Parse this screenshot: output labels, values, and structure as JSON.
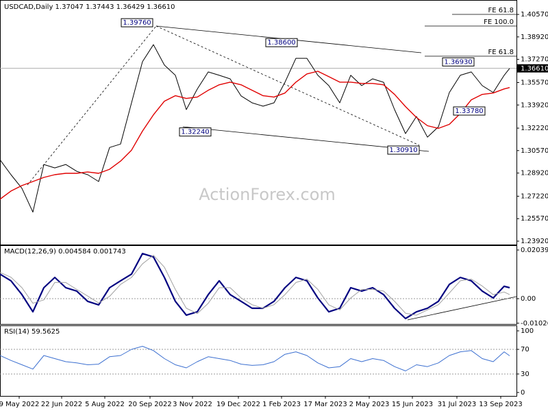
{
  "chart_data": [
    {
      "type": "line",
      "title": "USDCAD,Daily  1.37047 1.37443 1.36429 1.36610",
      "watermark": "ActionForex.com",
      "x": [
        0,
        8,
        16,
        24,
        32,
        40,
        48,
        56,
        64,
        72,
        80,
        88,
        96,
        104,
        112,
        120,
        128,
        136,
        144,
        152,
        160,
        168,
        176,
        184,
        192,
        200,
        208,
        216,
        224,
        232,
        240,
        248,
        256,
        264,
        272,
        280,
        288,
        296,
        304,
        312,
        320,
        328,
        336,
        344,
        352,
        360,
        368,
        372
      ],
      "series": [
        {
          "name": "USDCAD",
          "color": "#000000",
          "values": [
            1.299,
            1.288,
            1.278,
            1.2605,
            1.2955,
            1.293,
            1.2955,
            1.2905,
            1.288,
            1.283,
            1.308,
            1.3105,
            1.3408,
            1.371,
            1.3835,
            1.3685,
            1.361,
            1.3358,
            1.3509,
            1.3635,
            1.361,
            1.3584,
            1.3458,
            1.3408,
            1.3383,
            1.3408,
            1.3559,
            1.3735,
            1.3735,
            1.361,
            1.3534,
            1.3408,
            1.361,
            1.3534,
            1.3584,
            1.3559,
            1.3358,
            1.3182,
            1.3308,
            1.3156,
            1.3232,
            1.3484,
            1.361,
            1.3635,
            1.3534,
            1.3484,
            1.361,
            1.3661
          ]
        },
        {
          "name": "MA",
          "color": "#e00000",
          "values": [
            1.27,
            1.276,
            1.28,
            1.283,
            1.286,
            1.288,
            1.289,
            1.289,
            1.29,
            1.289,
            1.292,
            1.298,
            1.306,
            1.32,
            1.332,
            1.342,
            1.346,
            1.344,
            1.345,
            1.35,
            1.354,
            1.356,
            1.354,
            1.35,
            1.346,
            1.345,
            1.348,
            1.356,
            1.362,
            1.364,
            1.36,
            1.356,
            1.356,
            1.355,
            1.355,
            1.354,
            1.347,
            1.338,
            1.33,
            1.324,
            1.322,
            1.325,
            1.333,
            1.343,
            1.347,
            1.348,
            1.351,
            1.352
          ]
        }
      ],
      "xlim": [
        0,
        377
      ],
      "ylim": [
        1.2367,
        1.4163
      ],
      "yticks": [
        {
          "value": 1.4057,
          "label": "1.40570"
        },
        {
          "value": 1.3892,
          "label": "1.38920"
        },
        {
          "value": 1.3727,
          "label": "1.37270"
        },
        {
          "value": 1.3557,
          "label": "1.35570"
        },
        {
          "value": 1.3392,
          "label": "1.33920"
        },
        {
          "value": 1.3222,
          "label": "1.32220"
        },
        {
          "value": 1.3057,
          "label": "1.30570"
        },
        {
          "value": 1.2892,
          "label": "1.28920"
        },
        {
          "value": 1.2722,
          "label": "1.27220"
        },
        {
          "value": 1.2557,
          "label": "1.25570"
        },
        {
          "value": 1.2392,
          "label": "1.23920"
        }
      ],
      "current_price": {
        "value": 1.3661,
        "label": "1.36610"
      },
      "annotations": [
        {
          "x": 114,
          "value": 1.3976,
          "label": "1.39760"
        },
        {
          "x": 217,
          "value": 1.386,
          "label": "1.38600"
        },
        {
          "x": 346,
          "value": 1.3693,
          "label": "1.36930"
        },
        {
          "x": 133,
          "value": 1.3224,
          "label": "1.32240"
        },
        {
          "x": 354,
          "value": 1.3378,
          "label": "1.33780"
        },
        {
          "x": 306,
          "value": 1.3091,
          "label": "1.30910"
        }
      ],
      "fe_labels": [
        "FE 61.8",
        "FE 100.0",
        "FE 61.8"
      ]
    },
    {
      "type": "line",
      "title": "MACD(12,26,9) 0.004584 0.001743",
      "x": [
        0,
        8,
        16,
        24,
        32,
        40,
        48,
        56,
        64,
        72,
        80,
        88,
        96,
        104,
        112,
        120,
        128,
        136,
        144,
        152,
        160,
        168,
        176,
        184,
        192,
        200,
        208,
        216,
        224,
        232,
        240,
        248,
        256,
        264,
        272,
        280,
        288,
        296,
        304,
        312,
        320,
        328,
        336,
        344,
        352,
        360,
        368,
        372
      ],
      "series": [
        {
          "name": "MACD",
          "color": "#000080",
          "values": [
            0.0103,
            0.0075,
            0.0017,
            -0.0055,
            0.0046,
            0.0089,
            0.0046,
            0.0032,
            -0.0011,
            -0.0026,
            0.0046,
            0.0075,
            0.0103,
            0.0189,
            0.0175,
            0.0089,
            -0.0011,
            -0.0069,
            -0.0055,
            0.0017,
            0.0075,
            0.0017,
            -0.0011,
            -0.004,
            -0.004,
            -0.0011,
            0.0046,
            0.0089,
            0.0075,
            0.0003,
            -0.0055,
            -0.004,
            0.0046,
            0.0032,
            0.0046,
            0.0017,
            -0.004,
            -0.0083,
            -0.0055,
            -0.004,
            -0.0011,
            0.006,
            0.0089,
            0.0075,
            0.0032,
            0.0003,
            0.0052,
            0.0046
          ]
        },
        {
          "name": "Signal",
          "color": "#a0a0a0",
          "values": [
            0.011,
            0.009,
            0.0046,
            -0.0019,
            -0.0005,
            0.0068,
            0.0068,
            0.0039,
            0.0011,
            -0.0018,
            0.001,
            0.006,
            0.0089,
            0.0146,
            0.0182,
            0.0132,
            0.0039,
            -0.004,
            -0.0062,
            -0.0019,
            0.0046,
            0.0046,
            0.0003,
            -0.0025,
            -0.004,
            -0.0025,
            0.0017,
            0.0068,
            0.0082,
            0.0039,
            -0.0026,
            -0.0047,
            0.0003,
            0.0039,
            0.0039,
            0.0032,
            -0.0011,
            -0.0061,
            -0.0069,
            -0.0047,
            -0.0025,
            0.0024,
            0.0075,
            0.0082,
            0.0053,
            0.0017,
            0.0028,
            0.0017
          ]
        }
      ],
      "xlim": [
        0,
        377
      ],
      "ylim": [
        -0.0106,
        0.0224
      ],
      "yticks": [
        0.020399,
        {
          "value": 0,
          "label": "0.00"
        },
        -0.01026
      ]
    },
    {
      "type": "line",
      "title": "RSI(14) 59.5625",
      "x": [
        0,
        8,
        16,
        24,
        32,
        40,
        48,
        56,
        64,
        72,
        80,
        88,
        96,
        104,
        112,
        120,
        128,
        136,
        144,
        152,
        160,
        168,
        176,
        184,
        192,
        200,
        208,
        216,
        224,
        232,
        240,
        248,
        256,
        264,
        272,
        280,
        288,
        296,
        304,
        312,
        320,
        328,
        336,
        344,
        352,
        360,
        368,
        372
      ],
      "series": [
        {
          "name": "RSI",
          "color": "#3b6fd0",
          "values": [
            60,
            52,
            45,
            38,
            60,
            55,
            50,
            48,
            45,
            46,
            58,
            60,
            70,
            75,
            68,
            55,
            45,
            40,
            50,
            58,
            55,
            52,
            46,
            44,
            45,
            50,
            62,
            66,
            60,
            48,
            40,
            42,
            55,
            50,
            55,
            52,
            42,
            35,
            45,
            42,
            48,
            60,
            66,
            68,
            55,
            50,
            66,
            59.5625
          ]
        }
      ],
      "xlim": [
        0,
        377
      ],
      "ylim": [
        -5.6,
        108.9
      ],
      "yticks": [
        100,
        70,
        30,
        0
      ],
      "levels": [
        70,
        30
      ],
      "xticks": [
        {
          "value": 14,
          "label": "9 May 2022"
        },
        {
          "value": 45,
          "label": "22 Jun 2022"
        },
        {
          "value": 76.5,
          "label": "5 Aug 2022"
        },
        {
          "value": 109.5,
          "label": "20 Sep 2022"
        },
        {
          "value": 140.5,
          "label": "3 Nov 2022"
        },
        {
          "value": 174,
          "label": "19 Dec 2022"
        },
        {
          "value": 205.5,
          "label": "1 Feb 2023"
        },
        {
          "value": 237.5,
          "label": "17 Mar 2023"
        },
        {
          "value": 269.5,
          "label": "2 May 2023"
        },
        {
          "value": 301,
          "label": "15 Jun 2023"
        },
        {
          "value": 333.5,
          "label": "31 Jul 2023"
        },
        {
          "value": 365.5,
          "label": "13 Sep 2023"
        }
      ]
    }
  ]
}
